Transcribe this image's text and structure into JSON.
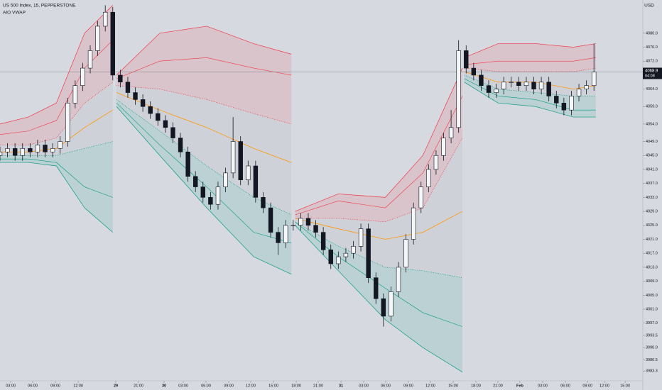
{
  "chart_data": {
    "type": "candlestick",
    "title": "US 500 Index, 15, PEPPERSTONE",
    "indicator": "AIO VWAP",
    "currency": "USD",
    "current_price": 4068.9,
    "countdown": "04:08",
    "up_color": "#f5f6f8",
    "down_color": "#131722",
    "xlim": [
      0,
      342
    ],
    "ylim": [
      3980.5,
      4089.5
    ],
    "x": [
      0,
      4,
      8,
      12,
      16,
      20,
      24,
      28,
      32,
      36,
      40,
      44,
      48,
      52,
      56,
      60,
      64,
      68,
      72,
      76,
      80,
      84,
      88,
      92,
      96,
      100,
      104,
      108,
      112,
      116,
      120,
      124,
      128,
      132,
      136,
      140,
      144,
      148,
      152,
      156,
      160,
      164,
      168,
      172,
      176,
      180,
      184,
      188,
      192,
      196,
      200,
      204,
      208,
      212,
      216,
      220,
      224,
      228,
      232,
      236,
      240,
      244,
      248,
      252,
      256,
      260,
      264,
      268,
      272,
      276,
      280,
      284,
      288,
      292,
      296,
      300,
      304,
      308,
      312,
      316
    ],
    "open": [
      4045,
      4046,
      4047,
      4045,
      4047,
      4046,
      4048,
      4046,
      4047,
      4049,
      4060,
      4065,
      4070,
      4075,
      4082,
      4086,
      4068,
      4066,
      4063,
      4061,
      4059,
      4057,
      4055,
      4053,
      4050,
      4046,
      4039,
      4036,
      4033,
      4031,
      4036,
      4040,
      4049,
      4038,
      4042,
      4033,
      4030,
      4023,
      4020,
      4025,
      4025,
      4027,
      4025,
      4023,
      4018,
      4014,
      4016,
      4017,
      4019,
      4024,
      4010,
      4004,
      3999,
      4006,
      4013,
      4021,
      4030,
      4036,
      4041,
      4045,
      4050,
      4053,
      4075,
      4070,
      4068,
      4065,
      4063,
      4064,
      4066,
      4066,
      4065,
      4066,
      4064,
      4066,
      4062,
      4060,
      4058,
      4062,
      4064,
      4065
    ],
    "high": [
      4047.5,
      4048.5,
      4048.5,
      4048.5,
      4048.5,
      4049.5,
      4049.5,
      4048.5,
      4050.5,
      4061.5,
      4066.5,
      4071.5,
      4076.5,
      4083.5,
      4088,
      4087.5,
      4069.5,
      4067.5,
      4064.5,
      4062.5,
      4060.5,
      4058.5,
      4056.5,
      4054.5,
      4051.5,
      4047.5,
      4040.5,
      4037.5,
      4034.5,
      4037.5,
      4041.5,
      4056,
      4050.5,
      4043.5,
      4043.5,
      4034.5,
      4031.5,
      4024.5,
      4026.5,
      4026.5,
      4028.5,
      4028.5,
      4026.5,
      4024.5,
      4019.5,
      4017.5,
      4018.5,
      4020.5,
      4025.5,
      4025.5,
      4011.5,
      4005.5,
      4007.5,
      4014.5,
      4022.5,
      4031.5,
      4037.5,
      4042.5,
      4046.5,
      4051.5,
      4058,
      4078,
      4076.5,
      4071.5,
      4069.5,
      4066.5,
      4065.5,
      4067.5,
      4067.5,
      4067.5,
      4067.5,
      4067.5,
      4067.5,
      4067.5,
      4063.5,
      4061.5,
      4063.5,
      4065.5,
      4066.5,
      4077
    ],
    "low": [
      4043.5,
      4044.5,
      4043.5,
      4043.5,
      4044.5,
      4044.5,
      4044.5,
      4044.5,
      4045.5,
      4047.5,
      4058.5,
      4063.5,
      4068.5,
      4073.5,
      4080.5,
      4066.5,
      4064.5,
      4061.5,
      4059.5,
      4057.5,
      4055.5,
      4053.5,
      4051.5,
      4048.5,
      4044.5,
      4037.5,
      4034.5,
      4031.5,
      4029.5,
      4029.5,
      4034.5,
      4038.5,
      4036.5,
      4036.5,
      4031.5,
      4028.5,
      4021.5,
      4016.5,
      4018.5,
      4023.5,
      4023.5,
      4023.5,
      4021.5,
      4016.5,
      4012.5,
      4012.5,
      4014.5,
      4015.5,
      4017.5,
      4008.5,
      4002.5,
      3996,
      3997.5,
      4004.5,
      4011.5,
      4019.5,
      4028.5,
      4034.5,
      4039.5,
      4043.5,
      4048.5,
      4051.5,
      4068.5,
      4066.5,
      4063.5,
      4061.5,
      4061.5,
      4062.5,
      4064.5,
      4063.5,
      4063.5,
      4062.5,
      4062.5,
      4060.5,
      4058.5,
      4056.5,
      4056.5,
      4060.5,
      4062.5,
      4063.5
    ],
    "close": [
      4046,
      4047,
      4045,
      4047,
      4046,
      4048,
      4046,
      4047,
      4049,
      4060,
      4065,
      4070,
      4075,
      4082,
      4086,
      4068,
      4066,
      4063,
      4061,
      4059,
      4057,
      4055,
      4053,
      4050,
      4046,
      4039,
      4036,
      4033,
      4031,
      4036,
      4040,
      4049,
      4038,
      4042,
      4033,
      4030,
      4023,
      4020,
      4025,
      4025,
      4027,
      4025,
      4023,
      4018,
      4014,
      4016,
      4017,
      4019,
      4024,
      4010,
      4004,
      3999,
      4006,
      4013,
      4021,
      4030,
      4036,
      4041,
      4045,
      4050,
      4053,
      4075,
      4070,
      4068,
      4065,
      4063,
      4064,
      4066,
      4066,
      4065,
      4066,
      4064,
      4066,
      4062,
      4060,
      4058,
      4062,
      4064,
      4065,
      4068.9
    ],
    "band_colors": {
      "upper": "#f23645",
      "vwap": "#ff9800",
      "lower": "#089981"
    },
    "bands": [
      {
        "x": [
          0,
          15,
          30,
          45,
          60
        ],
        "upper2": [
          4054,
          4056,
          4060,
          4080,
          4088
        ],
        "upper1": [
          4051,
          4052,
          4055,
          4070,
          4078
        ],
        "upper_dot": [
          4048,
          4048,
          4050,
          4060,
          4066
        ],
        "vwap": [
          4046,
          4046,
          4047,
          4053,
          4058
        ],
        "lower_dot": [
          4045,
          4045,
          4045,
          4047,
          4049
        ],
        "lower1": [
          4044,
          4044,
          4043,
          4036,
          4033
        ],
        "lower2": [
          4043,
          4043,
          4042,
          4030,
          4023
        ]
      },
      {
        "x": [
          62,
          85,
          110,
          135,
          155
        ],
        "upper2": [
          4068,
          4080,
          4082,
          4077,
          4074
        ],
        "upper1": [
          4067,
          4072,
          4073,
          4070,
          4068
        ],
        "upper_dot": [
          4065,
          4064,
          4061,
          4057,
          4054
        ],
        "vwap": [
          4063,
          4058,
          4053,
          4047,
          4043
        ],
        "lower_dot": [
          4061,
          4052,
          4042,
          4033,
          4028
        ],
        "lower1": [
          4060,
          4048,
          4036,
          4023,
          4020
        ],
        "lower2": [
          4059,
          4045,
          4030,
          4016,
          4011
        ]
      },
      {
        "x": [
          157,
          180,
          205,
          225,
          246
        ],
        "upper2": [
          4029,
          4034,
          4033,
          4045,
          4070
        ],
        "upper1": [
          4028,
          4032,
          4030,
          4040,
          4062
        ],
        "upper_dot": [
          4027,
          4027,
          4026,
          4030,
          4050
        ],
        "vwap": [
          4027,
          4024,
          4021,
          4023,
          4029
        ],
        "lower_dot": [
          4026,
          4019,
          4013,
          4012,
          4010
        ],
        "lower1": [
          4026,
          4016,
          4007,
          4000,
          3996
        ],
        "lower2": [
          4025,
          4012,
          3998,
          3990,
          3983
        ]
      },
      {
        "x": [
          247,
          265,
          285,
          305,
          317
        ],
        "upper2": [
          4073,
          4077,
          4077,
          4076,
          4077
        ],
        "upper1": [
          4071,
          4072,
          4072,
          4072,
          4073
        ],
        "upper_dot": [
          4070,
          4069,
          4069,
          4069,
          4070
        ],
        "vwap": [
          4069,
          4066,
          4066,
          4064,
          4065
        ],
        "lower_dot": [
          4068,
          4064,
          4063,
          4062,
          4062
        ],
        "lower1": [
          4067,
          4062,
          4061,
          4058,
          4058
        ],
        "lower2": [
          4066,
          4060,
          4059,
          4056,
          4056
        ]
      }
    ],
    "yticks": [
      {
        "value": 4080,
        "label": "4080.0"
      },
      {
        "value": 4076,
        "label": "4076.0"
      },
      {
        "value": 4072,
        "label": "4072.0"
      },
      {
        "value": 4064,
        "label": "4064.0"
      },
      {
        "value": 4059,
        "label": "4059.0"
      },
      {
        "value": 4054,
        "label": "4054.0"
      },
      {
        "value": 4049,
        "label": "4049.0"
      },
      {
        "value": 4045,
        "label": "4045.0"
      },
      {
        "value": 4041,
        "label": "4041.0"
      },
      {
        "value": 4037,
        "label": "4037.0"
      },
      {
        "value": 4033,
        "label": "4033.0"
      },
      {
        "value": 4029,
        "label": "4029.0"
      },
      {
        "value": 4025,
        "label": "4025.0"
      },
      {
        "value": 4021,
        "label": "4021.0"
      },
      {
        "value": 4017,
        "label": "4017.0"
      },
      {
        "value": 4013,
        "label": "4013.0"
      },
      {
        "value": 4009,
        "label": "4009.0"
      },
      {
        "value": 4005,
        "label": "4005.0"
      },
      {
        "value": 4001,
        "label": "4001.0"
      },
      {
        "value": 3997,
        "label": "3997.0"
      },
      3993.5,
      {
        "value": 3990,
        "label": "3990.0"
      },
      3986.5,
      3983.3
    ],
    "xticks": [
      {
        "value": 5.7,
        "label": "03:00"
      },
      {
        "value": 17.4,
        "label": "06:00"
      },
      {
        "value": 29.5,
        "label": "09:00"
      },
      {
        "value": 41.6,
        "label": "12:00"
      },
      {
        "value": 61.6,
        "label": "29"
      },
      {
        "value": 73.7,
        "label": "21:00"
      },
      {
        "value": 87.3,
        "label": "30"
      },
      {
        "value": 97.5,
        "label": "03:00"
      },
      {
        "value": 109.6,
        "label": "06:00"
      },
      {
        "value": 121.7,
        "label": "09:00"
      },
      {
        "value": 133.4,
        "label": "12:00"
      },
      {
        "value": 145.5,
        "label": "15:00"
      },
      {
        "value": 157.6,
        "label": "18:00"
      },
      {
        "value": 169.3,
        "label": "21:00"
      },
      {
        "value": 181.4,
        "label": "31"
      },
      {
        "value": 193.5,
        "label": "03:00"
      },
      {
        "value": 205.2,
        "label": "06:00"
      },
      {
        "value": 217.3,
        "label": "09:00"
      },
      {
        "value": 229,
        "label": "12:00"
      },
      {
        "value": 241.1,
        "label": "15:00"
      },
      {
        "value": 253.2,
        "label": "18:00"
      },
      {
        "value": 264.9,
        "label": "21:00"
      },
      {
        "value": 276.6,
        "label": "Feb"
      },
      {
        "value": 288.7,
        "label": "03:00"
      },
      {
        "value": 300.8,
        "label": "06:00"
      },
      {
        "value": 312.6,
        "label": "09:00"
      },
      {
        "value": 321.6,
        "label": "12:00"
      },
      {
        "value": 332.6,
        "label": "15:00"
      }
    ]
  }
}
